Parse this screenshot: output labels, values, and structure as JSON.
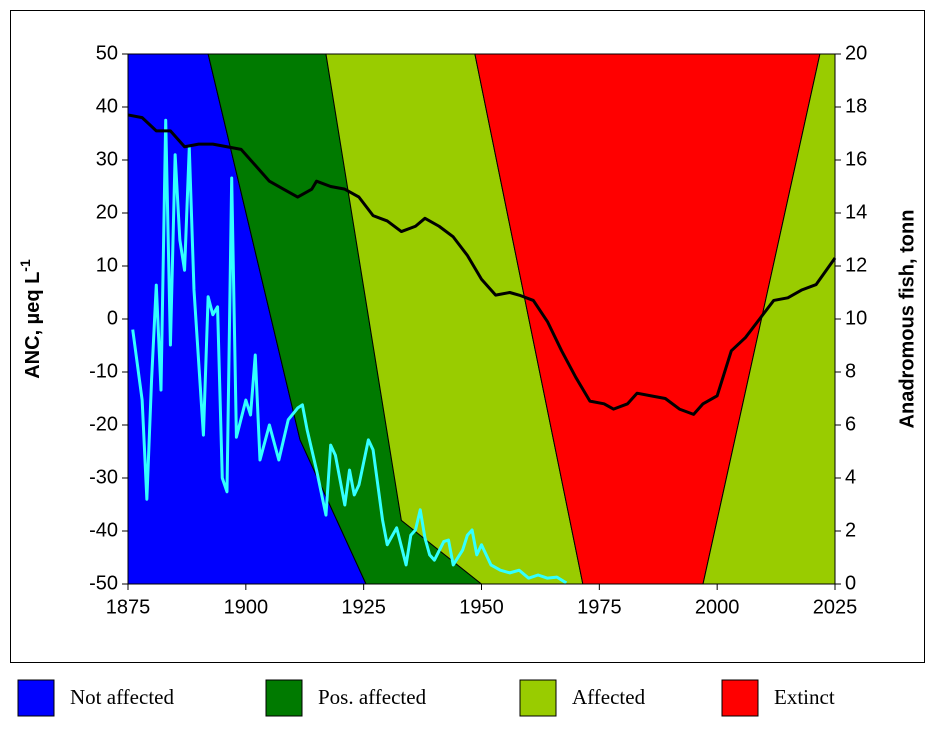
{
  "chart_data": {
    "type": "line",
    "xlim": [
      1875,
      2025
    ],
    "xticks": [
      1875,
      1900,
      1925,
      1950,
      1975,
      2000,
      2025
    ],
    "ylim": [
      -50,
      50
    ],
    "yticks": [
      -50,
      -40,
      -30,
      -20,
      -10,
      0,
      10,
      20,
      30,
      40,
      50
    ],
    "y2lim": [
      0,
      20
    ],
    "y2ticks": [
      0,
      2,
      4,
      6,
      8,
      10,
      12,
      14,
      16,
      18,
      20
    ],
    "ylabel": [
      "ANC, µeq L",
      "-1"
    ],
    "y2label": "Anadromous fish, tonn",
    "zones": [
      {
        "name": "Not affected",
        "color": "#0000ff",
        "x": [
          1875,
          1892,
          1911.5,
          1925.5,
          1875
        ],
        "y": [
          50,
          50,
          -22.8,
          -50,
          -50
        ]
      },
      {
        "name": "Pos. affected",
        "color": "#007a00",
        "x": [
          1892,
          1917,
          1933,
          1950,
          1925.5,
          1911.5
        ],
        "y": [
          50,
          50,
          -38,
          -50,
          -50,
          -22.8
        ]
      },
      {
        "name": "Affected",
        "color": "#99cc00",
        "x": [
          1917,
          1948.6,
          1971.5,
          1950,
          1933
        ],
        "y": [
          50,
          50,
          -50,
          -50,
          -38
        ]
      },
      {
        "name": "Extinct",
        "color": "#ff0000",
        "x": [
          1948.6,
          2021.8,
          1997,
          1971.5
        ],
        "y": [
          50,
          50,
          -50,
          -50
        ]
      },
      {
        "color": "#99cc00",
        "x": [
          2021.8,
          2025,
          2025,
          1997
        ],
        "y": [
          50,
          50,
          -50,
          -50
        ]
      }
    ],
    "series": [
      {
        "color": "#33ffff",
        "x": [
          1876,
          1878,
          1879,
          1880,
          1881,
          1882,
          1883,
          1884,
          1885,
          1886,
          1887,
          1888,
          1889,
          1891,
          1892,
          1893,
          1894,
          1895,
          1896,
          1897,
          1898,
          1900,
          1901,
          1902,
          1903,
          1905,
          1907,
          1909,
          1911,
          1912,
          1913,
          1915,
          1917,
          1918,
          1919,
          1920,
          1921,
          1922,
          1923,
          1924,
          1926,
          1927,
          1929,
          1930,
          1932,
          1934,
          1935,
          1936,
          1937,
          1938,
          1939,
          1940,
          1942,
          1943,
          1944,
          1946,
          1947,
          1948,
          1949,
          1950,
          1952,
          1954,
          1956,
          1958,
          1960,
          1962,
          1964,
          1966,
          1968
        ],
        "values": [
          -2,
          -15.3,
          -34,
          -11.5,
          6.4,
          -13.4,
          37.5,
          -4.9,
          31,
          14.9,
          9.2,
          32.3,
          5.5,
          -21.9,
          4.2,
          0.8,
          2.3,
          -30,
          -32.6,
          26.6,
          -22.3,
          -15.3,
          -18.1,
          -6.8,
          -26.6,
          -20,
          -26.6,
          -19,
          -16.8,
          -16.2,
          -20.9,
          -28.5,
          -37,
          -23.8,
          -25.7,
          -30.4,
          -35.1,
          -28.5,
          -33.2,
          -31.3,
          -22.8,
          -24.7,
          -37.9,
          -42.6,
          -39.4,
          -46.4,
          -40.8,
          -39.8,
          -36,
          -41.3,
          -44.5,
          -45.5,
          -42,
          -41.7,
          -46.4,
          -43.6,
          -40.8,
          -39.8,
          -44.5,
          -42.6,
          -46.4,
          -47.4,
          -47.9,
          -47.4,
          -48.9,
          -48.3,
          -48.9,
          -48.7,
          -49.8
        ]
      },
      {
        "color": "#000000",
        "axis": "y2",
        "x": [
          1875,
          1878,
          1881,
          1884,
          1887,
          1890,
          1893,
          1896,
          1899,
          1902,
          1905,
          1908,
          1911,
          1914,
          1915,
          1918,
          1921,
          1924,
          1927,
          1930,
          1933,
          1936,
          1938,
          1941,
          1944,
          1947,
          1950,
          1953,
          1956,
          1958,
          1961,
          1964,
          1967,
          1970,
          1973,
          1976,
          1978,
          1981,
          1983,
          1986,
          1989,
          1992,
          1995,
          1997,
          2000,
          2003,
          2006,
          2009,
          2012,
          2015,
          2018,
          2021,
          2023,
          2025
        ],
        "values": [
          17.7,
          17.6,
          17.1,
          17.1,
          16.5,
          16.6,
          16.6,
          16.5,
          16.4,
          15.8,
          15.2,
          14.9,
          14.6,
          14.9,
          15.2,
          15.0,
          14.9,
          14.6,
          13.9,
          13.7,
          13.3,
          13.5,
          13.8,
          13.5,
          13.1,
          12.4,
          11.5,
          10.9,
          11.0,
          10.9,
          10.7,
          9.9,
          8.8,
          7.8,
          6.9,
          6.8,
          6.6,
          6.8,
          7.2,
          7.1,
          7.0,
          6.6,
          6.4,
          6.8,
          7.1,
          8.8,
          9.3,
          10.0,
          10.7,
          10.8,
          11.1,
          11.3,
          11.8,
          12.3
        ]
      }
    ]
  }
}
